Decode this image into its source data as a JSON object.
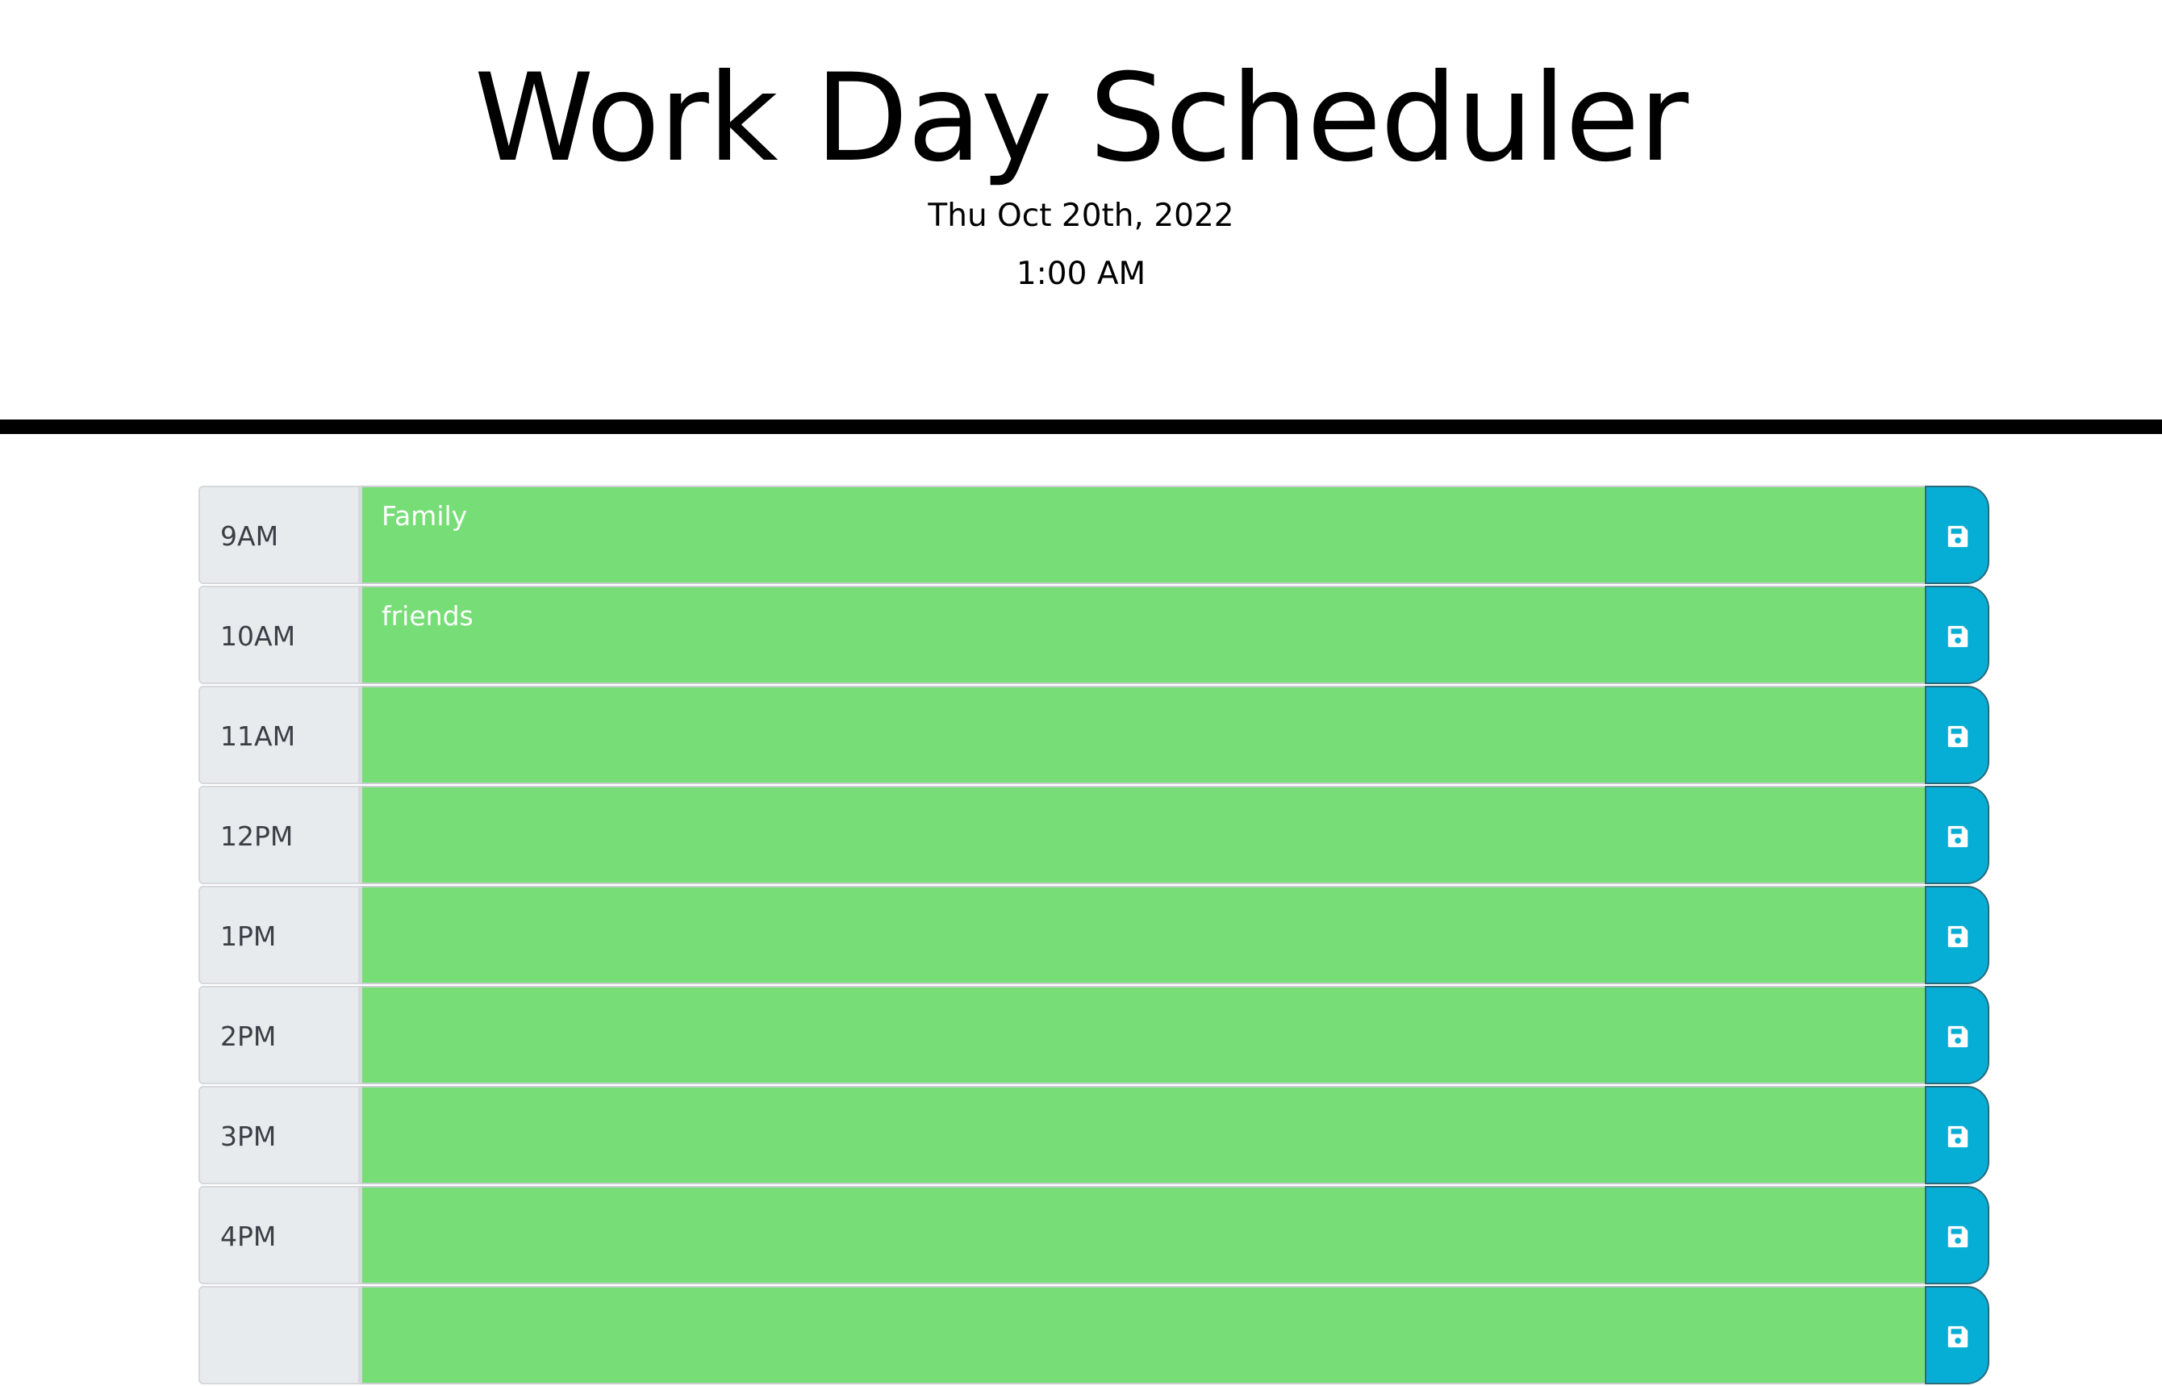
{
  "header": {
    "title": "Work Day Scheduler",
    "date": "Thu Oct 20th, 2022",
    "time": "1:00 AM"
  },
  "colors": {
    "future": "#77dd77",
    "save_button": "#06aed5",
    "hour_block": "#e8ebee"
  },
  "rows": [
    {
      "hour": "9AM",
      "text": "Family",
      "save_icon": "floppy-disk-icon"
    },
    {
      "hour": "10AM",
      "text": "friends",
      "save_icon": "floppy-disk-icon"
    },
    {
      "hour": "11AM",
      "text": "",
      "save_icon": "floppy-disk-icon"
    },
    {
      "hour": "12PM",
      "text": "",
      "save_icon": "floppy-disk-icon"
    },
    {
      "hour": "1PM",
      "text": "",
      "save_icon": "floppy-disk-icon"
    },
    {
      "hour": "2PM",
      "text": "",
      "save_icon": "floppy-disk-icon"
    },
    {
      "hour": "3PM",
      "text": "",
      "save_icon": "floppy-disk-icon"
    },
    {
      "hour": "4PM",
      "text": "",
      "save_icon": "floppy-disk-icon"
    },
    {
      "hour": "",
      "text": "",
      "save_icon": "floppy-disk-icon"
    }
  ]
}
